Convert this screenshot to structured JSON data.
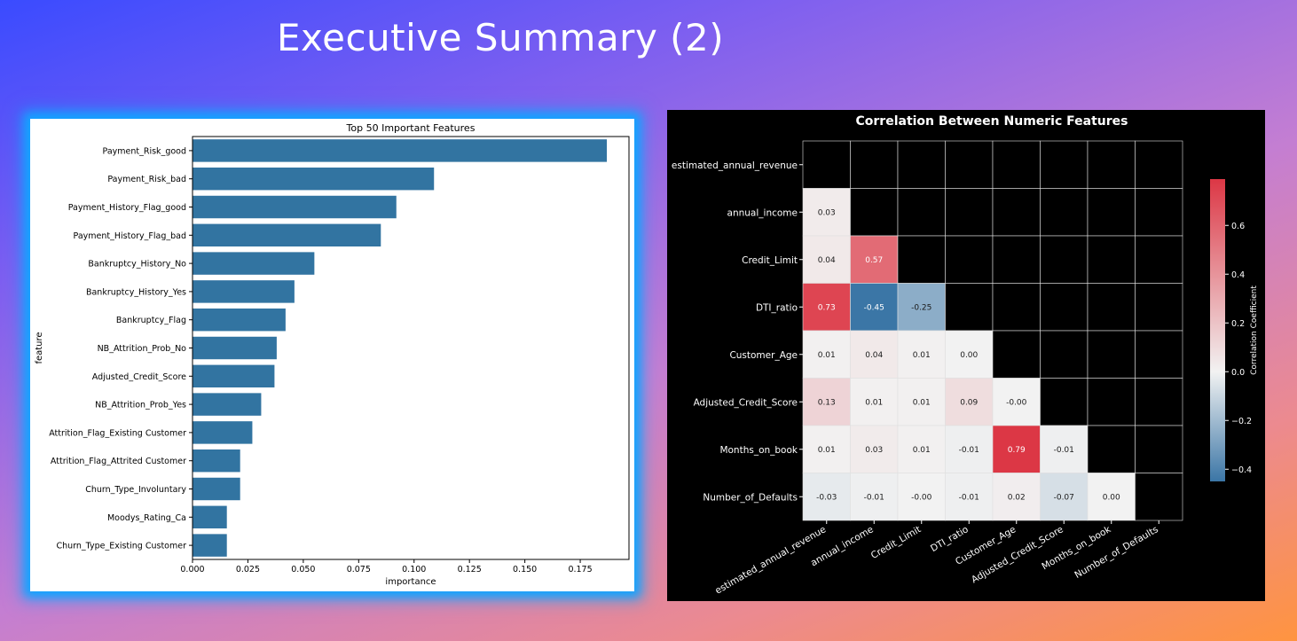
{
  "slide": {
    "title": "Executive Summary (2)"
  },
  "chart_data": [
    {
      "type": "bar",
      "orientation": "horizontal",
      "title": "Top 50 Important Features",
      "xlabel": "importance",
      "ylabel": "feature",
      "xlim": [
        0,
        0.197
      ],
      "xticks": [
        "0.000",
        "0.025",
        "0.050",
        "0.075",
        "0.100",
        "0.125",
        "0.150",
        "0.175"
      ],
      "bar_color": "#3274a1",
      "categories": [
        "Payment_Risk_good",
        "Payment_Risk_bad",
        "Payment_History_Flag_good",
        "Payment_History_Flag_bad",
        "Bankruptcy_History_No",
        "Bankruptcy_History_Yes",
        "Bankruptcy_Flag",
        "NB_Attrition_Prob_No",
        "Adjusted_Credit_Score",
        "NB_Attrition_Prob_Yes",
        "Attrition_Flag_Existing Customer",
        "Attrition_Flag_Attrited Customer",
        "Churn_Type_Involuntary",
        "Moodys_Rating_Ca",
        "Churn_Type_Existing Customer"
      ],
      "values": [
        0.187,
        0.109,
        0.092,
        0.085,
        0.055,
        0.046,
        0.042,
        0.038,
        0.037,
        0.031,
        0.027,
        0.0215,
        0.0215,
        0.0155,
        0.0155
      ]
    },
    {
      "type": "heatmap",
      "title": "Correlation Between Numeric Features",
      "variables": [
        "estimated_annual_revenue",
        "annual_income",
        "Credit_Limit",
        "DTI_ratio",
        "Customer_Age",
        "Adjusted_Credit_Score",
        "Months_on_book",
        "Number_of_Defaults"
      ],
      "lower_triangle": [
        [],
        [
          "0.03"
        ],
        [
          "0.04",
          "0.57"
        ],
        [
          "0.73",
          "-0.45",
          "-0.25"
        ],
        [
          "0.01",
          "0.04",
          "0.01",
          "0.00"
        ],
        [
          "0.13",
          "0.01",
          "0.01",
          "0.09",
          "-0.00"
        ],
        [
          "0.01",
          "0.03",
          "0.01",
          "-0.01",
          "0.79",
          "-0.01"
        ],
        [
          "-0.03",
          "-0.01",
          "-0.00",
          "-0.01",
          "0.02",
          "-0.07",
          "0.00"
        ]
      ],
      "colorbar": {
        "label": "Correlation Coefficient",
        "range": [
          -0.45,
          0.79
        ],
        "ticks": [
          "0.6",
          "0.4",
          "0.2",
          "0.0",
          "−0.2",
          "−0.4"
        ],
        "tick_values": [
          0.6,
          0.4,
          0.2,
          0.0,
          -0.2,
          -0.4
        ],
        "low_color": "#3b76a6",
        "mid_color": "#f2f2f2",
        "high_color": "#dc3745"
      },
      "masked_color": "#000000",
      "grid_color": "#e0e0e0"
    }
  ]
}
